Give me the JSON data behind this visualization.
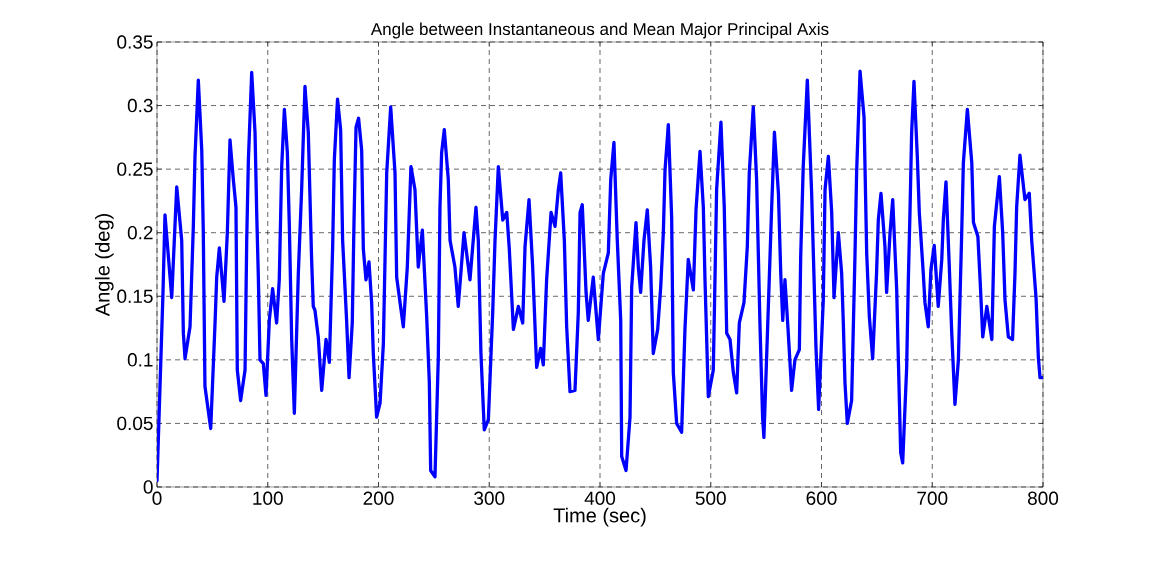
{
  "chart_data": {
    "type": "line",
    "title": "Angle between Instantaneous and Mean Major Principal Axis",
    "xlabel": "Time  (sec)",
    "ylabel": "Angle  (deg)",
    "xlim": [
      0,
      800
    ],
    "ylim": [
      0,
      0.35
    ],
    "xticks": [
      0,
      100,
      200,
      300,
      400,
      500,
      600,
      700,
      800
    ],
    "yticks": [
      0,
      0.05,
      0.1,
      0.15,
      0.2,
      0.25,
      0.3,
      0.35
    ],
    "grid": true,
    "line_style": "solid",
    "series": [
      {
        "color": "#0000ff",
        "x": [
          0,
          5.4,
          7.2,
          13.3,
          17.8,
          22.3,
          23.8,
          25.3,
          29.8,
          32.8,
          34.3,
          37.3,
          40.4,
          41.8,
          43.3,
          48.5,
          52.4,
          53.9,
          56.3,
          60.5,
          63.5,
          65.9,
          68.9,
          71.3,
          72.5,
          75.5,
          79.5,
          81,
          82.5,
          85.5,
          88.5,
          90,
          91.5,
          93,
          96,
          98.4,
          101.4,
          104.4,
          108,
          110.4,
          112.6,
          115,
          117.7,
          119.5,
          121.6,
          124,
          127.6,
          130.6,
          133.6,
          136.6,
          139.6,
          141.1,
          142.6,
          145.6,
          148.7,
          152.6,
          155.6,
          158.6,
          160.1,
          163,
          165.8,
          167.6,
          171.2,
          173.4,
          176.3,
          177.9,
          179.7,
          182,
          184.8,
          186.3,
          188.7,
          191.4,
          193.8,
          195.3,
          198.3,
          201.4,
          204.4,
          207.4,
          211,
          214.9,
          216.4,
          222.4,
          226,
          229.3,
          232.9,
          235.9,
          239.6,
          243.5,
          245.9,
          247.1,
          251,
          254,
          255.5,
          257,
          259.4,
          263,
          264.6,
          269,
          272,
          277.2,
          282.6,
          288,
          290.1,
          292.5,
          295.5,
          299.2,
          303.1,
          305.2,
          308.2,
          312.2,
          315.8,
          318.1,
          321.8,
          326.3,
          330.2,
          332.3,
          335.9,
          339.2,
          342.8,
          346.4,
          348.8,
          351.8,
          355.8,
          359.4,
          362.4,
          364.5,
          367.8,
          369.9,
          372.9,
          377.4,
          380.4,
          382,
          384,
          387.4,
          389.4,
          393.9,
          398.5,
          403,
          407.5,
          409.7,
          412.6,
          415.6,
          418.7,
          419.6,
          423.5,
          427.1,
          428.6,
          432.5,
          434.6,
          436.7,
          439.7,
          442.7,
          445.7,
          448.1,
          452.1,
          454.8,
          457.2,
          458.7,
          461.7,
          464.7,
          466.2,
          469.2,
          473.7,
          476.7,
          479.7,
          484.3,
          486.7,
          490.3,
          493.3,
          494.8,
          497.8,
          502.3,
          505.3,
          509.2,
          512.2,
          514.4,
          517.4,
          520.4,
          523.4,
          525.8,
          530,
          533,
          534.8,
          538.4,
          541.4,
          544.4,
          546.8,
          548,
          552,
          555,
          557.5,
          561.1,
          563.2,
          565,
          567,
          570,
          573,
          576,
          580,
          581.2,
          583.5,
          587.2,
          591.1,
          595,
          597.4,
          601.6,
          603.2,
          606.2,
          609.2,
          611.3,
          615.2,
          618.2,
          619.7,
          621.2,
          623.3,
          627.2,
          630.2,
          631.7,
          634.8,
          638.4,
          640.8,
          643.2,
          646.2,
          649.7,
          651.3,
          653.7,
          657.3,
          658.8,
          661.9,
          664.3,
          667.9,
          669.4,
          671.5,
          673.3,
          676.9,
          678.4,
          679.9,
          681.4,
          683.5,
          686.5,
          688.3,
          691.9,
          693.4,
          696.4,
          698.8,
          701.8,
          705.4,
          708.6,
          710,
          712.4,
          715.4,
          717.6,
          720.5,
          723.6,
          726.6,
          728.1,
          731.7,
          735.7,
          737.2,
          741.2,
          743.3,
          745.6,
          749.3,
          753.8,
          756.1,
          760.6,
          763.6,
          765.7,
          768.7,
          772.5,
          774.7,
          776.2,
          779.2,
          783.7,
          787.6,
          789.8,
          793.7,
          795.8,
          797.3,
          800
        ],
        "values": [
          0.005,
          0.153,
          0.214,
          0.149,
          0.236,
          0.194,
          0.121,
          0.101,
          0.126,
          0.205,
          0.26,
          0.32,
          0.265,
          0.2,
          0.079,
          0.046,
          0.129,
          0.165,
          0.188,
          0.146,
          0.2,
          0.273,
          0.242,
          0.22,
          0.092,
          0.068,
          0.092,
          0.194,
          0.257,
          0.326,
          0.279,
          0.216,
          0.165,
          0.1,
          0.097,
          0.072,
          0.131,
          0.156,
          0.129,
          0.163,
          0.252,
          0.297,
          0.263,
          0.205,
          0.116,
          0.058,
          0.168,
          0.234,
          0.315,
          0.279,
          0.179,
          0.142,
          0.139,
          0.118,
          0.076,
          0.116,
          0.098,
          0.189,
          0.257,
          0.305,
          0.281,
          0.194,
          0.131,
          0.086,
          0.129,
          0.21,
          0.283,
          0.29,
          0.265,
          0.187,
          0.163,
          0.177,
          0.145,
          0.105,
          0.055,
          0.066,
          0.113,
          0.247,
          0.299,
          0.247,
          0.165,
          0.126,
          0.173,
          0.252,
          0.234,
          0.173,
          0.202,
          0.134,
          0.082,
          0.013,
          0.008,
          0.102,
          0.22,
          0.263,
          0.281,
          0.242,
          0.194,
          0.173,
          0.142,
          0.2,
          0.163,
          0.22,
          0.194,
          0.105,
          0.045,
          0.053,
          0.137,
          0.194,
          0.252,
          0.21,
          0.216,
          0.187,
          0.124,
          0.142,
          0.129,
          0.189,
          0.226,
          0.173,
          0.094,
          0.109,
          0.096,
          0.163,
          0.216,
          0.205,
          0.234,
          0.247,
          0.194,
          0.126,
          0.075,
          0.076,
          0.137,
          0.216,
          0.222,
          0.153,
          0.131,
          0.165,
          0.116,
          0.168,
          0.184,
          0.242,
          0.271,
          0.194,
          0.131,
          0.024,
          0.013,
          0.055,
          0.157,
          0.208,
          0.173,
          0.153,
          0.194,
          0.218,
          0.173,
          0.105,
          0.124,
          0.157,
          0.2,
          0.249,
          0.285,
          0.212,
          0.09,
          0.05,
          0.043,
          0.124,
          0.179,
          0.155,
          0.218,
          0.264,
          0.22,
          0.163,
          0.071,
          0.092,
          0.234,
          0.287,
          0.22,
          0.121,
          0.116,
          0.09,
          0.074,
          0.129,
          0.145,
          0.189,
          0.247,
          0.299,
          0.242,
          0.129,
          0.055,
          0.039,
          0.142,
          0.22,
          0.279,
          0.231,
          0.168,
          0.131,
          0.163,
          0.121,
          0.076,
          0.1,
          0.108,
          0.181,
          0.252,
          0.32,
          0.231,
          0.11,
          0.061,
          0.147,
          0.234,
          0.26,
          0.216,
          0.149,
          0.2,
          0.168,
          0.129,
          0.082,
          0.05,
          0.068,
          0.181,
          0.247,
          0.327,
          0.291,
          0.184,
          0.134,
          0.101,
          0.168,
          0.21,
          0.231,
          0.189,
          0.153,
          0.2,
          0.226,
          0.155,
          0.1,
          0.027,
          0.019,
          0.094,
          0.163,
          0.216,
          0.279,
          0.319,
          0.26,
          0.216,
          0.168,
          0.145,
          0.126,
          0.171,
          0.19,
          0.142,
          0.179,
          0.21,
          0.24,
          0.173,
          0.121,
          0.065,
          0.1,
          0.2,
          0.255,
          0.297,
          0.255,
          0.208,
          0.197,
          0.161,
          0.118,
          0.142,
          0.116,
          0.205,
          0.244,
          0.2,
          0.147,
          0.118,
          0.116,
          0.168,
          0.22,
          0.261,
          0.226,
          0.231,
          0.194,
          0.149,
          0.102,
          0.086,
          0.086
        ]
      }
    ]
  }
}
